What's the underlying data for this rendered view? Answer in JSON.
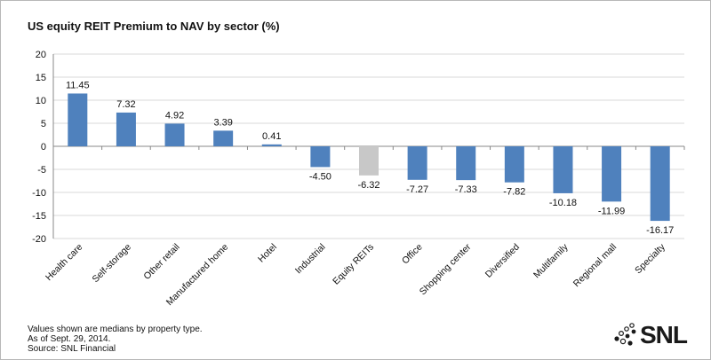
{
  "chart_data": {
    "type": "bar",
    "title": "US equity REIT Premium to NAV by sector (%)",
    "categories": [
      "Health care",
      "Self-storage",
      "Other retail",
      "Manufactured home",
      "Hotel",
      "Industrial",
      "Equity REITs",
      "Office",
      "Shopping center",
      "Diversified",
      "Multifamily",
      "Regional mall",
      "Specialty"
    ],
    "values": [
      11.45,
      7.32,
      4.92,
      3.39,
      0.41,
      -4.5,
      -6.32,
      -7.27,
      -7.33,
      -7.82,
      -10.18,
      -11.99,
      -16.17
    ],
    "value_labels": [
      "11.45",
      "7.32",
      "4.92",
      "3.39",
      "0.41",
      "-4.50",
      "-6.32",
      "-7.27",
      "-7.33",
      "-7.82",
      "-10.18",
      "-11.99",
      "-16.17"
    ],
    "highlight_category": "Equity REITs",
    "ylim": [
      -20,
      20
    ],
    "yticks": [
      20,
      15,
      10,
      5,
      0,
      -5,
      -10,
      -15,
      -20
    ],
    "grid": true,
    "legend": "none",
    "colors": {
      "bar": "#4f81bd",
      "highlight": "#c8c8c8",
      "grid": "#d9d9d9",
      "axis": "#888888",
      "text": "#111111"
    }
  },
  "notes": {
    "line1": "Values shown are medians by property type.",
    "line2": "As of  Sept. 29, 2014.",
    "line3": "Source: SNL Financial"
  },
  "logo": {
    "text": "SNL"
  }
}
